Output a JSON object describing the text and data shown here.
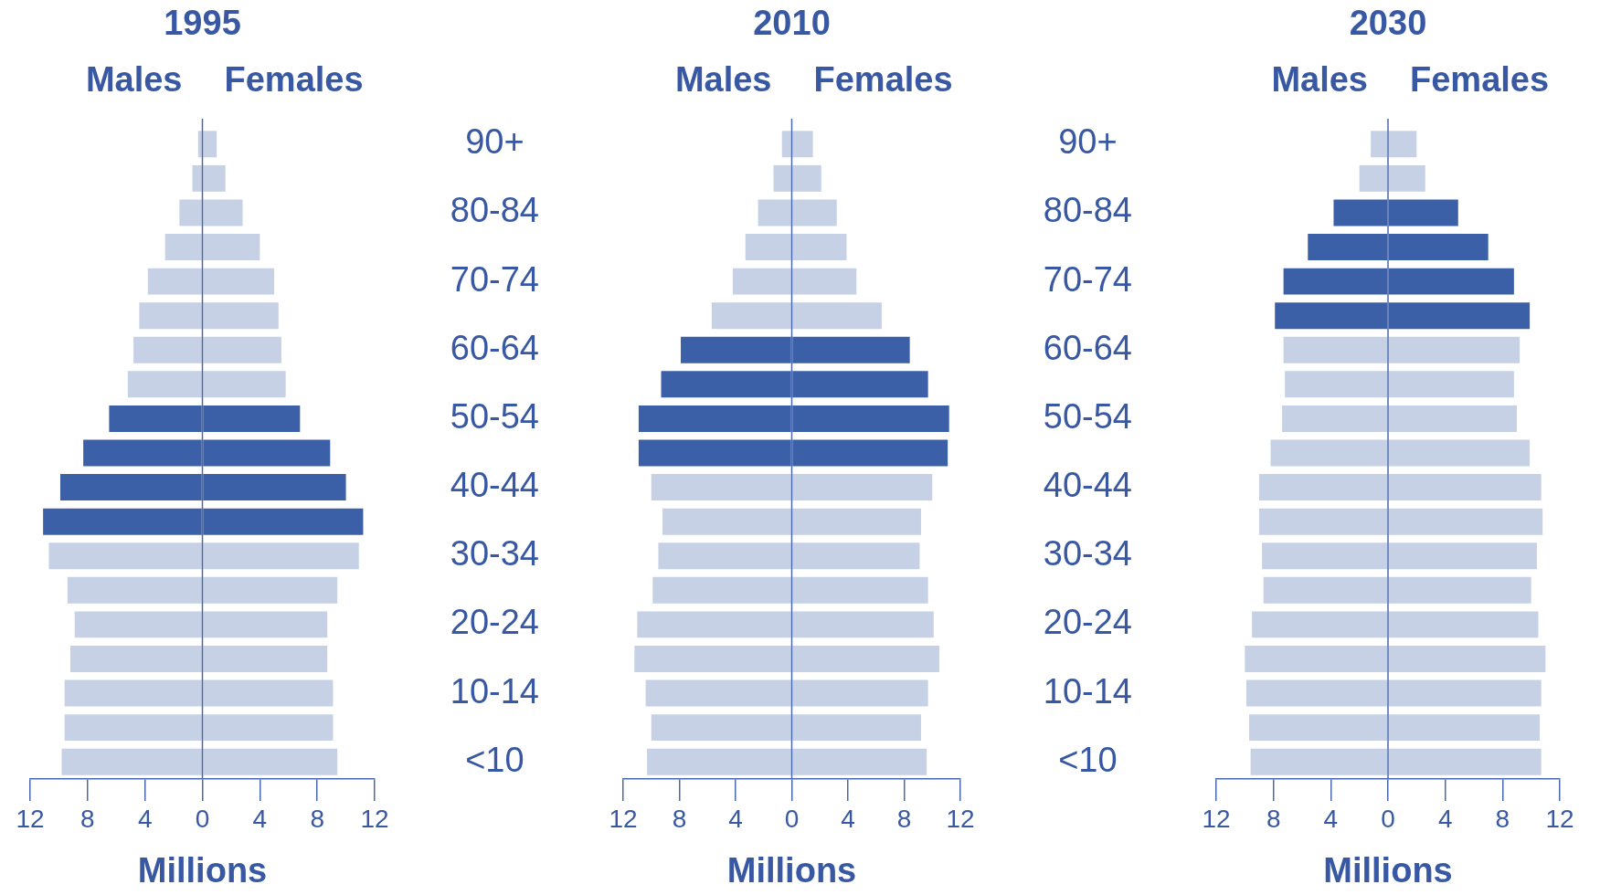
{
  "chart_data": [
    {
      "type": "bar",
      "orientation": "horizontal",
      "stacked": true,
      "title": "1995",
      "xlabel": "Millions",
      "grid": false,
      "legend": false,
      "tick_labels": "x",
      "categories": [
        null,
        null,
        null,
        null,
        null,
        null,
        null,
        null,
        null,
        null,
        null,
        null,
        null,
        null,
        null,
        null,
        null,
        null,
        null
      ],
      "ref_lines": [
        {
          "axis": "x",
          "value": 0
        }
      ],
      "xlim": [
        -12,
        12
      ],
      "xticks": [
        {
          "value": -12,
          "label": "12"
        },
        {
          "value": -8,
          "label": "8"
        },
        {
          "value": -4,
          "label": "4"
        },
        0,
        4,
        8,
        12
      ],
      "series": [
        {
          "name": "Males",
          "colors": [
            "#c6d1e5",
            "#c6d1e5",
            "#c6d1e5",
            "#c6d1e5",
            "#c6d1e5",
            "#c6d1e5",
            "#c6d1e5",
            "#c6d1e5",
            "#3b60a8",
            "#3b60a8",
            "#3b60a8",
            "#3b60a8",
            "#c6d1e5",
            "#c6d1e5",
            "#c6d1e5",
            "#c6d1e5",
            "#c6d1e5",
            "#c6d1e5",
            "#c6d1e5"
          ],
          "values": [
            -0.3,
            -0.7,
            -1.6,
            -2.6,
            -3.8,
            -4.4,
            -4.8,
            -5.2,
            -6.5,
            -8.3,
            -9.9,
            -11.1,
            -10.7,
            -9.4,
            -8.9,
            -9.2,
            -9.6,
            -9.6,
            -9.8
          ]
        },
        {
          "name": "Females",
          "colors": [
            "#c6d1e5",
            "#c6d1e5",
            "#c6d1e5",
            "#c6d1e5",
            "#c6d1e5",
            "#c6d1e5",
            "#c6d1e5",
            "#c6d1e5",
            "#3b60a8",
            "#3b60a8",
            "#3b60a8",
            "#3b60a8",
            "#c6d1e5",
            "#c6d1e5",
            "#c6d1e5",
            "#c6d1e5",
            "#c6d1e5",
            "#c6d1e5",
            "#c6d1e5"
          ],
          "values": [
            1.0,
            1.6,
            2.8,
            4.0,
            5.0,
            5.3,
            5.5,
            5.8,
            6.8,
            8.9,
            10.0,
            11.2,
            10.9,
            9.4,
            8.7,
            8.7,
            9.1,
            9.1,
            9.4
          ]
        }
      ]
    },
    {
      "type": "bar",
      "orientation": "horizontal",
      "stacked": true,
      "title": "2010",
      "xlabel": "Millions",
      "grid": false,
      "legend": false,
      "ref_lines": [
        {
          "axis": "x",
          "value": 0
        }
      ],
      "categories": [
        "90+",
        null,
        "80-84",
        null,
        "70-74",
        null,
        "60-64",
        null,
        "50-54",
        null,
        "40-44",
        null,
        "30-34",
        null,
        "20-24",
        null,
        "10-14",
        null,
        "<10"
      ],
      "xlim": [
        -12,
        12
      ],
      "xticks": [
        {
          "value": -12,
          "label": "12"
        },
        {
          "value": -8,
          "label": "8"
        },
        {
          "value": -4,
          "label": "4"
        },
        0,
        4,
        8,
        12
      ],
      "series": [
        {
          "name": "Males",
          "colors": [
            "#c6d1e5",
            "#c6d1e5",
            "#c6d1e5",
            "#c6d1e5",
            "#c6d1e5",
            "#c6d1e5",
            "#3b60a8",
            "#3b60a8",
            "#3b60a8",
            "#3b60a8",
            "#c6d1e5",
            "#c6d1e5",
            "#c6d1e5",
            "#c6d1e5",
            "#c6d1e5",
            "#c6d1e5",
            "#c6d1e5",
            "#c6d1e5",
            "#c6d1e5"
          ],
          "values": [
            -0.7,
            -1.3,
            -2.4,
            -3.3,
            -4.2,
            -5.7,
            -7.9,
            -9.3,
            -10.9,
            -10.9,
            -10.0,
            -9.2,
            -9.5,
            -9.9,
            -11.0,
            -11.2,
            -10.4,
            -10.0,
            -10.3
          ]
        },
        {
          "name": "Females",
          "colors": [
            "#c6d1e5",
            "#c6d1e5",
            "#c6d1e5",
            "#c6d1e5",
            "#c6d1e5",
            "#c6d1e5",
            "#3b60a8",
            "#3b60a8",
            "#3b60a8",
            "#3b60a8",
            "#c6d1e5",
            "#c6d1e5",
            "#c6d1e5",
            "#c6d1e5",
            "#c6d1e5",
            "#c6d1e5",
            "#c6d1e5",
            "#c6d1e5",
            "#c6d1e5"
          ],
          "values": [
            1.5,
            2.1,
            3.2,
            3.9,
            4.6,
            6.4,
            8.4,
            9.7,
            11.2,
            11.1,
            10.0,
            9.2,
            9.1,
            9.7,
            10.1,
            10.5,
            9.7,
            9.2,
            9.6
          ]
        }
      ]
    },
    {
      "type": "bar",
      "orientation": "horizontal",
      "stacked": true,
      "title": "2030",
      "xlabel": "Millions",
      "grid": false,
      "legend": false,
      "ref_lines": [
        {
          "axis": "x",
          "value": 0
        }
      ],
      "categories": [
        "90+",
        null,
        "80-84",
        null,
        "70-74",
        null,
        "60-64",
        null,
        "50-54",
        null,
        "40-44",
        null,
        "30-34",
        null,
        "20-24",
        null,
        "10-14",
        null,
        "<10"
      ],
      "xlim": [
        -12,
        12
      ],
      "xticks": [
        {
          "value": -12,
          "label": "12"
        },
        {
          "value": -8,
          "label": "8"
        },
        {
          "value": -4,
          "label": "4"
        },
        0,
        4,
        8,
        12
      ],
      "series": [
        {
          "name": "Males",
          "colors": [
            "#c6d1e5",
            "#c6d1e5",
            "#3b60a8",
            "#3b60a8",
            "#3b60a8",
            "#3b60a8",
            "#c6d1e5",
            "#c6d1e5",
            "#c6d1e5",
            "#c6d1e5",
            "#c6d1e5",
            "#c6d1e5",
            "#c6d1e5",
            "#c6d1e5",
            "#c6d1e5",
            "#c6d1e5",
            "#c6d1e5",
            "#c6d1e5",
            "#c6d1e5"
          ],
          "values": [
            -1.2,
            -2.0,
            -3.8,
            -5.6,
            -7.3,
            -7.9,
            -7.3,
            -7.2,
            -7.4,
            -8.2,
            -9.0,
            -9.0,
            -8.8,
            -8.7,
            -9.5,
            -10.0,
            -9.9,
            -9.7,
            -9.6
          ]
        },
        {
          "name": "Females",
          "colors": [
            "#c6d1e5",
            "#c6d1e5",
            "#3b60a8",
            "#3b60a8",
            "#3b60a8",
            "#3b60a8",
            "#c6d1e5",
            "#c6d1e5",
            "#c6d1e5",
            "#c6d1e5",
            "#c6d1e5",
            "#c6d1e5",
            "#c6d1e5",
            "#c6d1e5",
            "#c6d1e5",
            "#c6d1e5",
            "#c6d1e5",
            "#c6d1e5",
            "#c6d1e5"
          ],
          "values": [
            2.0,
            2.6,
            4.9,
            7.0,
            8.8,
            9.9,
            9.2,
            8.8,
            9.0,
            9.9,
            10.7,
            10.8,
            10.4,
            10.0,
            10.5,
            11.0,
            10.7,
            10.6,
            10.7
          ]
        }
      ]
    }
  ]
}
